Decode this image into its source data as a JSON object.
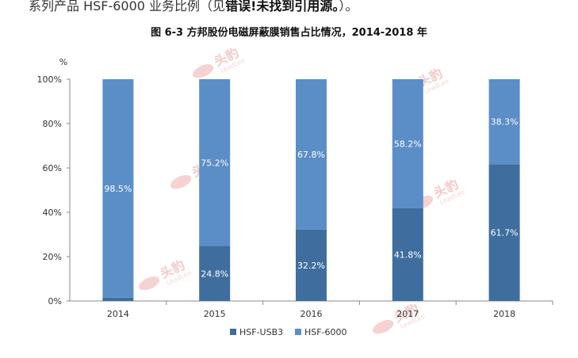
{
  "header_text": {
    "prefix": "系列产品 HSF-6000 业务比例（见",
    "bold": "错误!未找到引用源。",
    "suffix": "）。"
  },
  "watermark": {
    "brand": "头豹",
    "sub": "LeadLeo"
  },
  "colors": {
    "usb3": "#3f6e9e",
    "h6000": "#5b8ec6",
    "axis": "#888888"
  },
  "chart_data": {
    "type": "bar",
    "stacked": true,
    "title": "图 6-3  方邦股份电磁屏蔽膜销售占比情况，2014-2018 年",
    "xlabel": "",
    "ylabel": "%",
    "ylim": [
      0,
      100
    ],
    "yticks": [
      "0%",
      "20%",
      "40%",
      "60%",
      "80%",
      "100%"
    ],
    "yticks_values": [
      0,
      20,
      40,
      60,
      80,
      100
    ],
    "categories": [
      "2014",
      "2015",
      "2016",
      "2017",
      "2018"
    ],
    "series": [
      {
        "name": "HSF-USB3",
        "values": [
          1.5,
          24.8,
          32.2,
          41.8,
          61.7
        ],
        "labels": [
          "1.5%",
          "24.8%",
          "32.2%",
          "41.8%",
          "61.7%"
        ]
      },
      {
        "name": "HSF-6000",
        "values": [
          98.5,
          75.2,
          67.8,
          58.2,
          38.3
        ],
        "labels": [
          "98.5%",
          "75.2%",
          "67.8%",
          "58.2%",
          "38.3%"
        ]
      }
    ],
    "legend_position": "bottom",
    "grid": false
  }
}
